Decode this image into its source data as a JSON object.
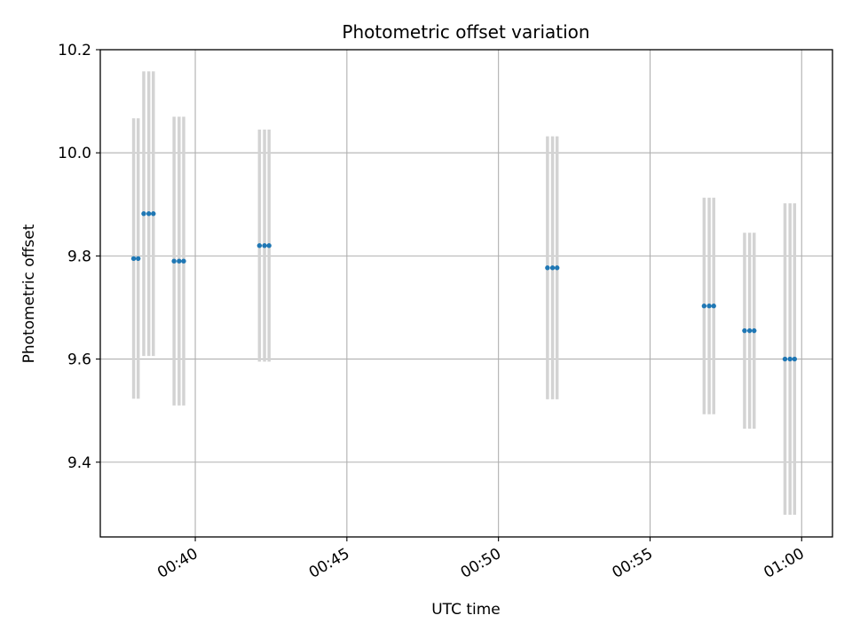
{
  "chart_data": {
    "type": "scatter",
    "title": "Photometric offset variation",
    "xlabel": "UTC time",
    "ylabel": "Photometric offset",
    "x_unit": "time (HH:MM UTC)",
    "xlim": [
      "00:36:52",
      "01:01:01"
    ],
    "ylim": [
      9.255,
      10.2
    ],
    "grid": true,
    "x_ticks": [
      "00:40",
      "00:45",
      "00:50",
      "00:55",
      "01:00"
    ],
    "y_ticks": [
      9.4,
      9.6,
      9.8,
      10.0,
      10.2
    ],
    "point_color": "#1f77b4",
    "errorbar_color": "#d3d3d3",
    "series": [
      {
        "points": [
          {
            "x": "00:37:58",
            "y": 9.795,
            "err": 0.272
          },
          {
            "x": "00:38:07",
            "y": 9.795,
            "err": 0.272
          },
          {
            "x": "00:38:18",
            "y": 9.882,
            "err": 0.276
          },
          {
            "x": "00:38:28",
            "y": 9.882,
            "err": 0.276
          },
          {
            "x": "00:38:37",
            "y": 9.882,
            "err": 0.276
          },
          {
            "x": "00:39:18",
            "y": 9.79,
            "err": 0.28
          },
          {
            "x": "00:39:28",
            "y": 9.79,
            "err": 0.28
          },
          {
            "x": "00:39:37",
            "y": 9.79,
            "err": 0.28
          },
          {
            "x": "00:42:07",
            "y": 9.82,
            "err": 0.225
          },
          {
            "x": "00:42:17",
            "y": 9.82,
            "err": 0.225
          },
          {
            "x": "00:42:26",
            "y": 9.82,
            "err": 0.225
          },
          {
            "x": "00:51:37",
            "y": 9.777,
            "err": 0.255
          },
          {
            "x": "00:51:47",
            "y": 9.777,
            "err": 0.255
          },
          {
            "x": "00:51:56",
            "y": 9.777,
            "err": 0.255
          },
          {
            "x": "00:56:47",
            "y": 9.703,
            "err": 0.21
          },
          {
            "x": "00:56:57",
            "y": 9.703,
            "err": 0.21
          },
          {
            "x": "00:57:06",
            "y": 9.703,
            "err": 0.21
          },
          {
            "x": "00:58:07",
            "y": 9.655,
            "err": 0.19
          },
          {
            "x": "00:58:17",
            "y": 9.655,
            "err": 0.19
          },
          {
            "x": "00:58:26",
            "y": 9.655,
            "err": 0.19
          },
          {
            "x": "00:59:27",
            "y": 9.6,
            "err": 0.302
          },
          {
            "x": "00:59:37",
            "y": 9.6,
            "err": 0.302
          },
          {
            "x": "00:59:46",
            "y": 9.6,
            "err": 0.302
          }
        ]
      }
    ]
  }
}
